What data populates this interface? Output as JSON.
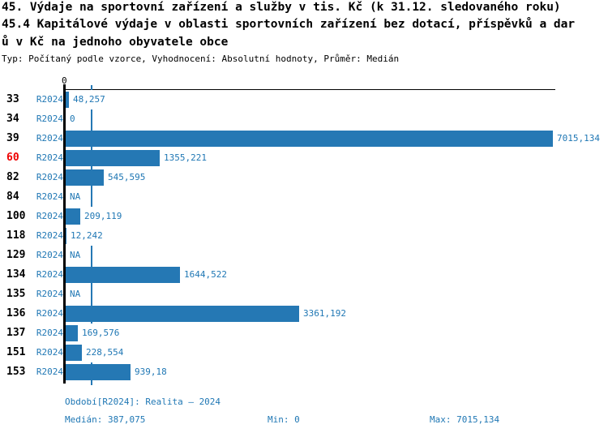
{
  "title": {
    "lines": [
      "45. Výdaje na sportovní zařízení a služby v tis. Kč (k 31.12. sledovaného roku)",
      "45.4 Kapitálové výdaje v oblasti sportovních zařízení bez dotací, příspěvků a dar",
      "ů v Kč na jednoho obyvatele obce"
    ],
    "meta": "Typ: Počítaný podle vzorce, Vyhodnocení: Absolutní hodnoty, Průměr: Medián"
  },
  "axis": {
    "zero_tick": "0"
  },
  "colors": {
    "bar_blue": "#2578b4",
    "text_blue": "#1f77b4",
    "highlight_red": "#ee0000",
    "axis_black": "#000000"
  },
  "rows": [
    {
      "num": "33",
      "period": "R2024",
      "value_label": "48,257",
      "value": 48.257,
      "highlighted": false
    },
    {
      "num": "34",
      "period": "R2024",
      "value_label": "0",
      "value": 0,
      "highlighted": false
    },
    {
      "num": "39",
      "period": "R2024",
      "value_label": "7015,134",
      "value": 7015.134,
      "highlighted": false
    },
    {
      "num": "60",
      "period": "R2024",
      "value_label": "1355,221",
      "value": 1355.221,
      "highlighted": true
    },
    {
      "num": "82",
      "period": "R2024",
      "value_label": "545,595",
      "value": 545.595,
      "highlighted": false
    },
    {
      "num": "84",
      "period": "R2024",
      "value_label": "NA",
      "value": null,
      "highlighted": false
    },
    {
      "num": "100",
      "period": "R2024",
      "value_label": "209,119",
      "value": 209.119,
      "highlighted": false
    },
    {
      "num": "118",
      "period": "R2024",
      "value_label": "12,242",
      "value": 12.242,
      "highlighted": false
    },
    {
      "num": "129",
      "period": "R2024",
      "value_label": "NA",
      "value": null,
      "highlighted": false
    },
    {
      "num": "134",
      "period": "R2024",
      "value_label": "1644,522",
      "value": 1644.522,
      "highlighted": false
    },
    {
      "num": "135",
      "period": "R2024",
      "value_label": "NA",
      "value": null,
      "highlighted": false
    },
    {
      "num": "136",
      "period": "R2024",
      "value_label": "3361,192",
      "value": 3361.192,
      "highlighted": false
    },
    {
      "num": "137",
      "period": "R2024",
      "value_label": "169,576",
      "value": 169.576,
      "highlighted": false
    },
    {
      "num": "151",
      "period": "R2024",
      "value_label": "228,554",
      "value": 228.554,
      "highlighted": false
    },
    {
      "num": "153",
      "period": "R2024",
      "value_label": "939,18",
      "value": 939.18,
      "highlighted": false
    }
  ],
  "chart_data": {
    "type": "bar",
    "orientation": "horizontal",
    "title": "45. Výdaje na sportovní zařízení a služby v tis. Kč (k 31.12. sledovaného roku) / 45.4 Kapitálové výdaje v oblasti sportovních zařízení bez dotací, příspěvků a darů v Kč na jednoho obyvatele obce",
    "subtitle": "Typ: Počítaný podle vzorce, Vyhodnocení: Absolutní hodnoty, Průměr: Medián",
    "categories": [
      "33",
      "34",
      "39",
      "60",
      "82",
      "84",
      "100",
      "118",
      "129",
      "134",
      "135",
      "136",
      "137",
      "151",
      "153"
    ],
    "series": [
      {
        "name": "R2024",
        "values": [
          48.257,
          0,
          7015.134,
          1355.221,
          545.595,
          null,
          209.119,
          12.242,
          null,
          1644.522,
          null,
          3361.192,
          169.576,
          228.554,
          939.18
        ]
      }
    ],
    "value_labels": [
      "48,257",
      "0",
      "7015,134",
      "1355,221",
      "545,595",
      "NA",
      "209,119",
      "12,242",
      "NA",
      "1644,522",
      "NA",
      "3361,192",
      "169,576",
      "228,554",
      "939,18"
    ],
    "na_text": "NA",
    "highlighted_category": "60",
    "xlim": [
      0,
      7015.134
    ],
    "x_tick_labels": [
      "0"
    ],
    "median": 387.075,
    "min": 0,
    "max": 7015.134,
    "grid": "none",
    "legend_position": "none"
  },
  "footer": {
    "period_line": "Období[R2024]: Realita – 2024",
    "median": "Medián: 387,075",
    "min": "Min: 0",
    "max": "Max: 7015,134"
  }
}
